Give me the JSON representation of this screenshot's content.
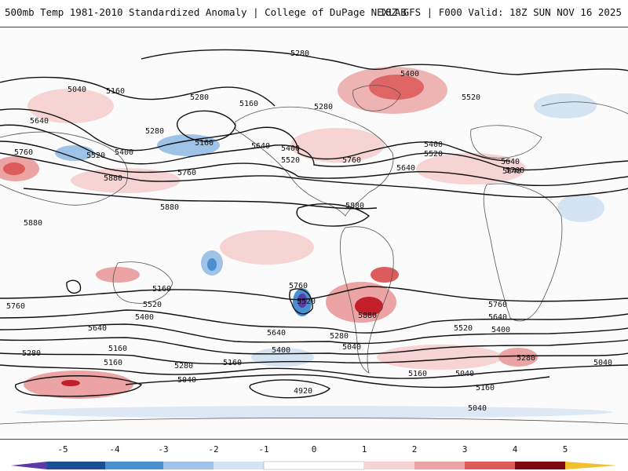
{
  "header": {
    "title_left": "500mb Temp 1981-2010 Standardized Anomaly | College of DuPage NEXLAB",
    "title_right": "18Z GFS | F000 Valid: 18Z SUN NOV 16 2025"
  },
  "colors": {
    "warm_1": "#f6d4d4",
    "warm_2": "#eba3a3",
    "warm_3": "#dd5b5b",
    "warm_4": "#c21f2a",
    "warm_5": "#7d0a12",
    "cold_1": "#d5e4f3",
    "cold_2": "#9fc3e6",
    "cold_3": "#4a90d0",
    "cold_4": "#1c4e96",
    "cold_5": "#5a3aa8",
    "extreme_warm": "#f2c02e",
    "contour": "#111111",
    "coast": "#555555"
  },
  "contour_labels": [
    "5280",
    "5040",
    "5160",
    "5280",
    "5160",
    "5400",
    "5520",
    "5640",
    "5760",
    "5880",
    "5280",
    "5160",
    "5640",
    "5400",
    "5520",
    "5400",
    "5520",
    "5640",
    "5760",
    "5880",
    "5880",
    "5760",
    "5520",
    "5640",
    "5400",
    "5280",
    "5160",
    "5160",
    "5280",
    "5160",
    "5040",
    "5640",
    "5400",
    "5280",
    "5040",
    "4920",
    "5760",
    "5520",
    "5880",
    "5160",
    "5040",
    "5760",
    "5640",
    "5520",
    "5400",
    "5280",
    "5160",
    "5040",
    "5040",
    "5640",
    "5760",
    "5880",
    "5280",
    "5160",
    "5400",
    "5520",
    "5640",
    "5760"
  ],
  "colorbar": {
    "tick_labels": [
      "-5",
      "-4",
      "-3",
      "-2",
      "-1",
      "0",
      "1",
      "2",
      "3",
      "4",
      "5"
    ]
  }
}
